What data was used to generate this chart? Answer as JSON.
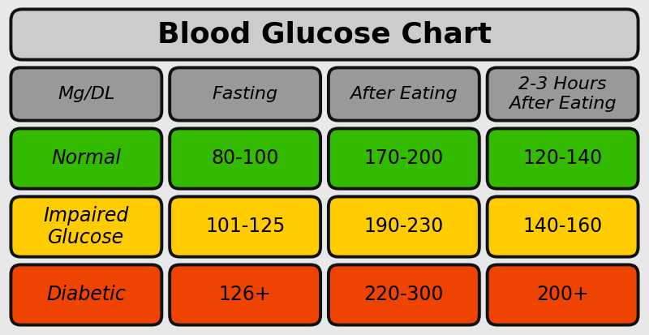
{
  "title": "Blood Glucose Chart",
  "title_bg": "#cccccc",
  "title_fontsize": 26,
  "bg_color": "#e8e8e8",
  "border_color": "#111111",
  "header_bg": "#999999",
  "columns": [
    "Mg/DL",
    "Fasting",
    "After Eating",
    "2-3 Hours\nAfter Eating"
  ],
  "rows": [
    {
      "label": "Normal",
      "color": "#33bb00",
      "values": [
        "80-100",
        "170-200",
        "120-140"
      ]
    },
    {
      "label": "Impaired\nGlucose",
      "color": "#ffcc00",
      "values": [
        "101-125",
        "190-230",
        "140-160"
      ]
    },
    {
      "label": "Diabetic",
      "color": "#ee4400",
      "values": [
        "126+",
        "220-300",
        "200+"
      ]
    }
  ],
  "cell_fontsize": 17,
  "header_fontsize": 16,
  "label_col_italic": true,
  "value_col_italic": false
}
